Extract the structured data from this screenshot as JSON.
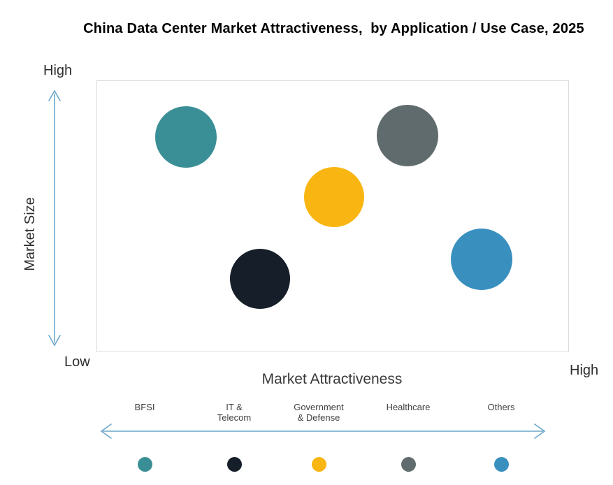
{
  "title": "China Data Center Market Attractiveness,  by Application / Use Case, 2025",
  "axes": {
    "y_label": "Market Size",
    "y_high": "High",
    "y_low": "Low",
    "x_label": "Market Attractiveness",
    "x_high": "High"
  },
  "colors": {
    "arrow": "#6BA6C9",
    "plot_border": "#DBDBDB",
    "title_text": "#000000",
    "label_text": "#404040"
  },
  "chart_data": {
    "type": "scatter",
    "subtype": "bubble",
    "title": "China Data Center Market Attractiveness, by Application / Use Case, 2025",
    "xlabel": "Market Attractiveness",
    "ylabel": "Market Size",
    "x_range_labels": [
      "Low",
      "High"
    ],
    "y_range_labels": [
      "Low",
      "High"
    ],
    "value_scale": [
      0,
      10
    ],
    "legend_position": "bottom",
    "grid": false,
    "series": [
      {
        "name": "BFSI",
        "color": "#3A8F96",
        "attractiveness": 1.9,
        "market_size": 7.9,
        "x_pct": 18.8,
        "y_pct": 20.7,
        "r": 44
      },
      {
        "name": "IT & Telecom",
        "color": "#151E29",
        "attractiveness": 3.5,
        "market_size": 2.7,
        "x_pct": 34.6,
        "y_pct": 73.1,
        "r": 43
      },
      {
        "name": "Government & Defense",
        "color": "#F9B511",
        "attractiveness": 5.0,
        "market_size": 5.7,
        "x_pct": 50.3,
        "y_pct": 42.9,
        "r": 43
      },
      {
        "name": "Healthcare",
        "color": "#5F6B6D",
        "attractiveness": 6.6,
        "market_size": 8.0,
        "x_pct": 65.9,
        "y_pct": 20.2,
        "r": 44
      },
      {
        "name": "Others",
        "color": "#3990BF",
        "attractiveness": 8.2,
        "market_size": 3.4,
        "x_pct": 81.6,
        "y_pct": 65.9,
        "r": 44
      }
    ]
  },
  "legend": {
    "items": [
      {
        "label": "BFSI",
        "color": "#3A8F96"
      },
      {
        "label": "IT &\nTelecom",
        "color": "#151E29"
      },
      {
        "label": "Government\n& Defense",
        "color": "#F9B511"
      },
      {
        "label": "Healthcare",
        "color": "#5F6B6D"
      },
      {
        "label": "Others",
        "color": "#3990BF"
      }
    ]
  }
}
